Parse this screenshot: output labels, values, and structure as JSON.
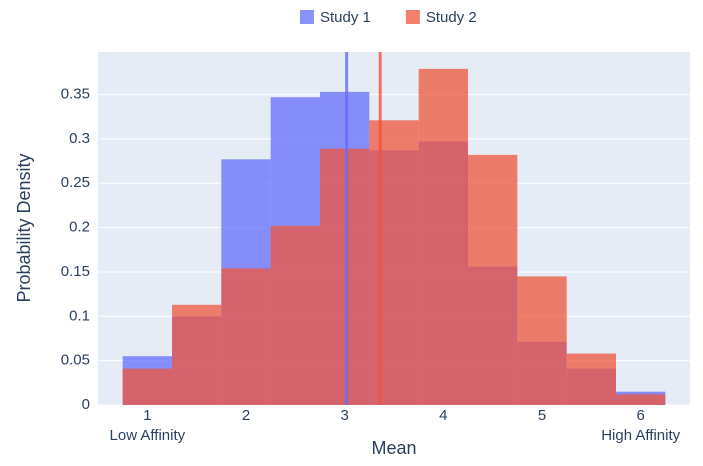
{
  "chart_data": {
    "type": "histogram",
    "xlabel": "Mean",
    "ylabel": "Probability Density",
    "bins": [
      0.75,
      1.25,
      1.75,
      2.25,
      2.75,
      3.25,
      3.75,
      4.25,
      4.75,
      5.25,
      5.75,
      6.25
    ],
    "series": [
      {
        "name": "Study 1",
        "color": "#636efa",
        "mean": 3.02,
        "values": [
          0.055,
          0.1,
          0.277,
          0.347,
          0.353,
          0.287,
          0.297,
          0.156,
          0.071,
          0.041,
          0.015
        ]
      },
      {
        "name": "Study 2",
        "color": "#ef553b",
        "mean": 3.36,
        "values": [
          0.041,
          0.113,
          0.154,
          0.202,
          0.289,
          0.321,
          0.379,
          0.282,
          0.145,
          0.058,
          0.012
        ]
      }
    ],
    "xlim": [
      0.5,
      6.5
    ],
    "xticks": [
      1,
      2,
      3,
      4,
      5,
      6
    ],
    "ylim": [
      0,
      0.398
    ],
    "yticks": [
      0,
      0.05,
      0.1,
      0.15,
      0.2,
      0.25,
      0.3,
      0.35
    ],
    "annotations": [
      {
        "x": 1,
        "text": "Low Affinity"
      },
      {
        "x": 6,
        "text": "High Affinity"
      }
    ],
    "grid": true,
    "legend": "top"
  }
}
